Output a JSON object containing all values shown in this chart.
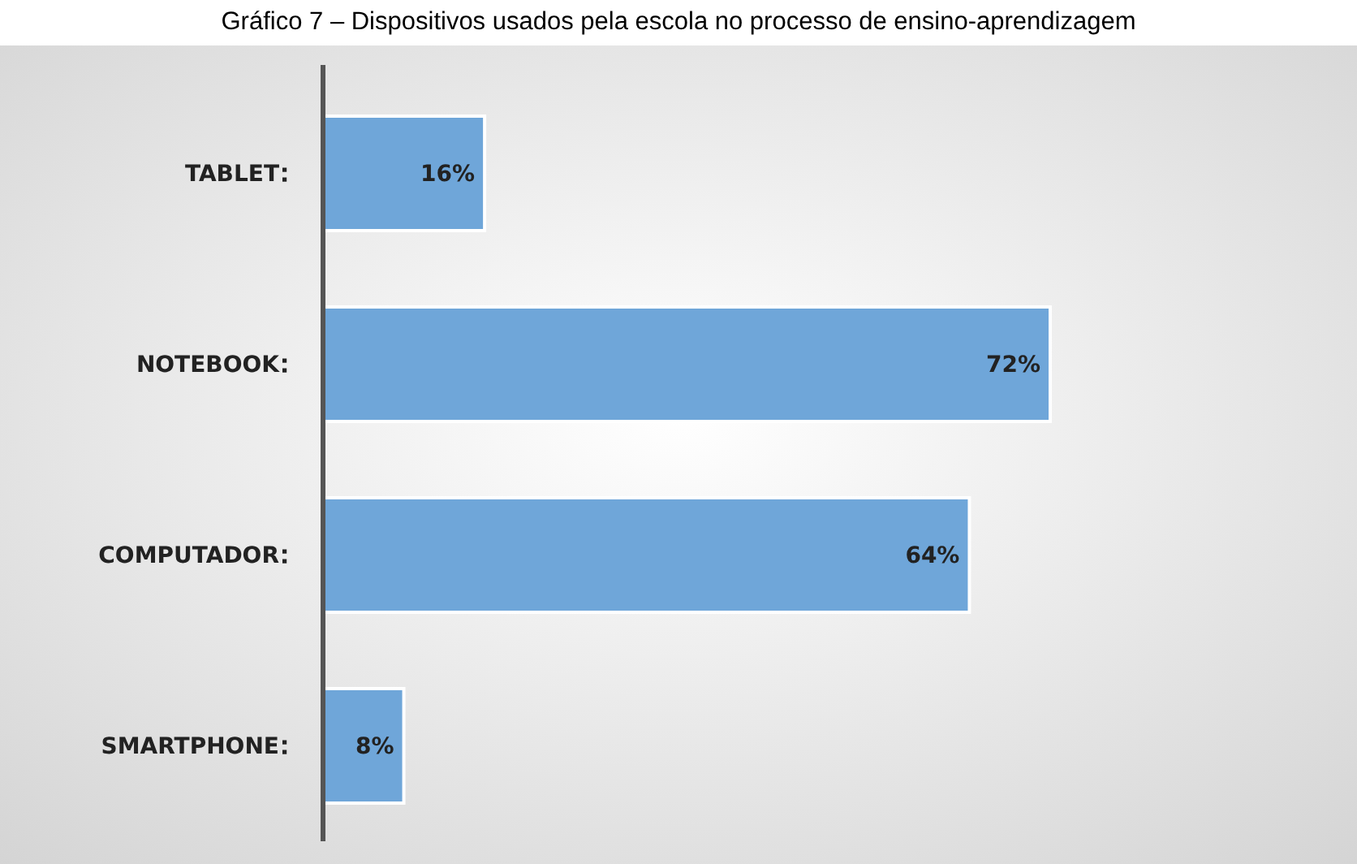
{
  "chart_data": {
    "type": "bar",
    "orientation": "horizontal",
    "title": "Gráfico 7 – Dispositivos usados pela escola no processo de ensino-aprendizagem",
    "categories": [
      "TABLET",
      "NOTEBOOK",
      "COMPUTADOR",
      "SMARTPHONE"
    ],
    "values": [
      16,
      72,
      64,
      8
    ],
    "value_labels": [
      "16%",
      "72%",
      "64%",
      "8%"
    ],
    "color": "#6fa6d9"
  }
}
